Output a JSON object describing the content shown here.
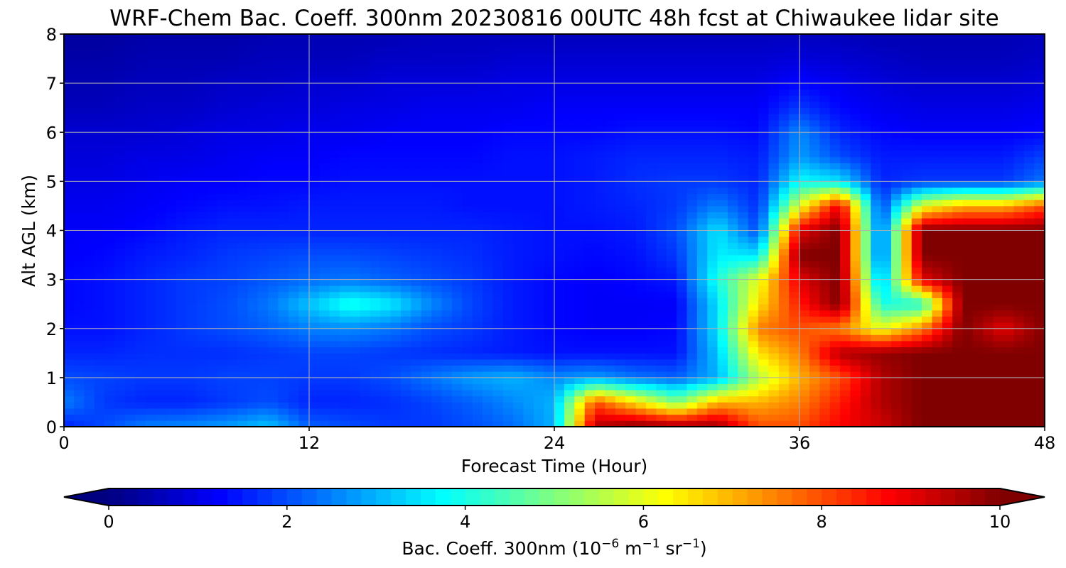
{
  "chart_data": {
    "type": "heatmap",
    "title": "WRF-Chem Bac. Coeff. 300nm  20230816 00UTC 48h fcst at Chiwaukee lidar site",
    "xlabel": "Forecast Time (Hour)",
    "ylabel": "Alt AGL (km)",
    "xlim": [
      0,
      48
    ],
    "ylim": [
      0,
      8
    ],
    "x_ticks": [
      "0",
      "12",
      "24",
      "36",
      "48"
    ],
    "y_ticks": [
      "0",
      "1",
      "2",
      "3",
      "4",
      "5",
      "6",
      "7",
      "8"
    ],
    "grid": true,
    "colormap": "jet",
    "colorbar": {
      "label_prefix": "Bac. Coeff. 300nm  (10",
      "label_exp1": "−6",
      "label_mid": " m",
      "label_exp2": "−1",
      "label_mid2": " sr",
      "label_exp3": "−1",
      "label_suffix": ")",
      "ticks": [
        "0",
        "2",
        "4",
        "6",
        "8",
        "10"
      ],
      "range": [
        0,
        10
      ],
      "extend": "both",
      "placement": "bottom"
    },
    "x": [
      0,
      2,
      4,
      6,
      8,
      10,
      12,
      14,
      16,
      18,
      20,
      22,
      24,
      26,
      28,
      30,
      32,
      34,
      36,
      38,
      40,
      42,
      44,
      46,
      48
    ],
    "y": [
      0,
      0.5,
      1,
      1.5,
      2,
      2.5,
      3,
      3.5,
      4,
      4.5,
      5,
      5.5,
      6,
      6.5,
      7,
      7.5,
      8
    ],
    "values": [
      [
        1.5,
        2.0,
        2.5,
        2.6,
        2.8,
        3.2,
        2.2,
        2.0,
        1.8,
        1.8,
        2.0,
        2.3,
        3.0,
        9.5,
        10.0,
        9.8,
        9.8,
        8.0,
        8.0,
        8.8,
        9.2,
        10.0,
        10.0,
        10.0,
        10.0
      ],
      [
        2.5,
        1.8,
        1.6,
        1.6,
        1.8,
        2.0,
        1.6,
        1.6,
        1.7,
        1.9,
        2.2,
        2.6,
        3.0,
        8.0,
        6.5,
        5.0,
        7.0,
        7.0,
        7.5,
        8.5,
        9.5,
        10.0,
        10.0,
        10.0,
        10.0
      ],
      [
        2.0,
        1.9,
        1.8,
        1.8,
        1.9,
        1.9,
        1.8,
        1.8,
        2.0,
        2.4,
        2.8,
        3.0,
        2.6,
        2.8,
        2.4,
        2.2,
        3.0,
        5.5,
        7.0,
        8.0,
        9.5,
        10.0,
        10.0,
        10.0,
        10.0
      ],
      [
        1.6,
        1.6,
        1.7,
        1.7,
        1.7,
        1.8,
        1.9,
        1.9,
        1.8,
        1.7,
        1.6,
        1.5,
        1.4,
        1.4,
        1.4,
        1.4,
        3.2,
        6.5,
        7.5,
        9.5,
        9.8,
        10.0,
        10.0,
        10.0,
        10.0
      ],
      [
        1.4,
        1.4,
        1.6,
        1.8,
        2.0,
        2.2,
        2.5,
        2.6,
        2.4,
        2.0,
        1.8,
        1.5,
        1.3,
        1.2,
        1.2,
        1.3,
        3.5,
        7.5,
        8.0,
        7.5,
        6.0,
        7.5,
        10.0,
        9.0,
        10.0
      ],
      [
        1.3,
        1.4,
        1.6,
        1.8,
        2.0,
        2.4,
        3.2,
        4.0,
        3.6,
        2.6,
        1.9,
        1.5,
        1.3,
        1.2,
        1.2,
        1.2,
        3.5,
        6.5,
        8.5,
        10.0,
        4.0,
        4.0,
        10.0,
        10.0,
        10.0
      ],
      [
        1.3,
        1.4,
        1.6,
        1.8,
        1.9,
        2.1,
        2.3,
        2.4,
        2.2,
        2.0,
        1.8,
        1.5,
        1.3,
        1.2,
        1.3,
        1.5,
        4.0,
        6.0,
        9.0,
        10.0,
        2.8,
        9.0,
        10.0,
        10.0,
        10.0
      ],
      [
        1.2,
        1.3,
        1.5,
        1.6,
        1.8,
        1.9,
        2.0,
        2.0,
        1.9,
        1.8,
        1.7,
        1.5,
        1.4,
        1.3,
        1.4,
        1.8,
        3.6,
        3.5,
        10.0,
        10.0,
        2.0,
        10.0,
        10.0,
        10.0,
        10.0
      ],
      [
        1.2,
        1.2,
        1.3,
        1.5,
        1.6,
        1.6,
        1.6,
        1.6,
        1.6,
        1.6,
        1.6,
        1.5,
        1.4,
        1.4,
        1.5,
        2.0,
        3.5,
        2.0,
        9.0,
        10.0,
        2.0,
        10.0,
        10.0,
        10.0,
        10.0
      ],
      [
        1.1,
        1.1,
        1.2,
        1.3,
        1.4,
        1.4,
        1.5,
        1.5,
        1.5,
        1.5,
        1.4,
        1.4,
        1.4,
        1.5,
        1.6,
        1.8,
        2.5,
        1.7,
        6.0,
        9.0,
        1.8,
        6.0,
        7.0,
        7.0,
        8.0
      ],
      [
        1.0,
        1.0,
        1.1,
        1.2,
        1.2,
        1.3,
        1.3,
        1.4,
        1.4,
        1.4,
        1.4,
        1.4,
        1.4,
        1.5,
        1.7,
        1.8,
        1.8,
        1.6,
        3.8,
        3.5,
        1.6,
        1.8,
        1.8,
        1.8,
        2.4
      ],
      [
        0.9,
        0.9,
        1.0,
        1.0,
        1.1,
        1.2,
        1.2,
        1.3,
        1.3,
        1.3,
        1.3,
        1.4,
        1.4,
        1.5,
        1.6,
        1.6,
        1.6,
        1.5,
        2.8,
        2.0,
        1.5,
        1.5,
        1.5,
        1.5,
        1.9
      ],
      [
        0.8,
        0.8,
        0.8,
        0.9,
        1.0,
        1.0,
        1.1,
        1.1,
        1.2,
        1.2,
        1.2,
        1.3,
        1.3,
        1.3,
        1.4,
        1.4,
        1.4,
        1.3,
        2.6,
        1.6,
        1.3,
        1.2,
        1.2,
        1.2,
        1.3
      ],
      [
        0.6,
        0.6,
        0.7,
        0.7,
        0.8,
        0.9,
        0.9,
        1.0,
        1.0,
        1.1,
        1.1,
        1.1,
        1.2,
        1.2,
        1.2,
        1.2,
        1.2,
        1.2,
        1.8,
        1.3,
        1.1,
        1.0,
        1.0,
        1.0,
        1.1
      ],
      [
        0.5,
        0.5,
        0.6,
        0.6,
        0.7,
        0.7,
        0.8,
        0.8,
        0.9,
        0.9,
        0.9,
        1.0,
        1.0,
        1.0,
        1.0,
        1.0,
        1.0,
        1.0,
        1.3,
        1.1,
        0.9,
        0.8,
        0.8,
        0.8,
        0.9
      ],
      [
        0.4,
        0.4,
        0.5,
        0.5,
        0.5,
        0.6,
        0.6,
        0.6,
        0.7,
        0.7,
        0.7,
        0.8,
        0.8,
        0.8,
        0.8,
        0.8,
        0.8,
        0.8,
        0.9,
        0.8,
        0.7,
        0.6,
        0.6,
        0.6,
        0.7
      ],
      [
        0.3,
        0.3,
        0.4,
        0.4,
        0.4,
        0.5,
        0.5,
        0.5,
        0.5,
        0.6,
        0.6,
        0.6,
        0.6,
        0.6,
        0.6,
        0.6,
        0.6,
        0.6,
        0.6,
        0.6,
        0.5,
        0.5,
        0.5,
        0.5,
        0.6
      ]
    ]
  }
}
